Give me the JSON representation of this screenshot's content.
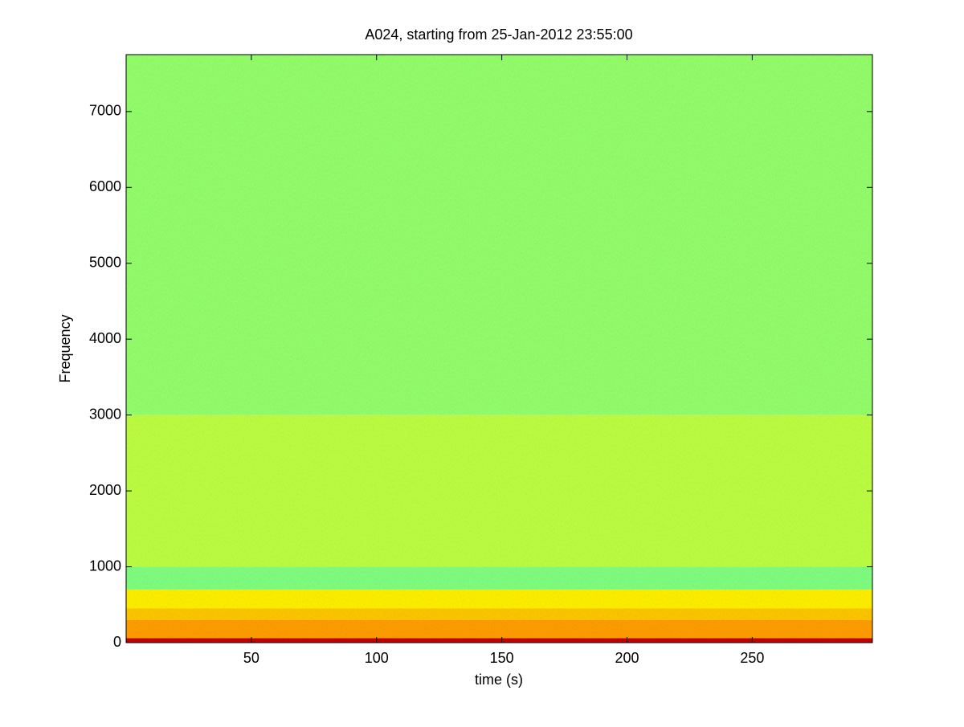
{
  "chart_data": {
    "type": "spectrogram",
    "title": "A024, starting from 25-Jan-2012 23:55:00",
    "xlabel": "time (s)",
    "ylabel": "Frequency",
    "xlim": [
      0,
      298
    ],
    "ylim": [
      0,
      7750
    ],
    "xticks": [
      50,
      100,
      150,
      200,
      250
    ],
    "yticks": [
      0,
      1000,
      2000,
      3000,
      4000,
      5000,
      6000,
      7000
    ],
    "colormap": "jet",
    "clim": [
      0,
      1
    ],
    "band_edges": [
      0,
      60,
      300,
      450,
      700,
      1000,
      3000,
      7750
    ],
    "levels": [
      0.93,
      0.72,
      0.68,
      0.64,
      0.5,
      0.56,
      0.52
    ]
  }
}
